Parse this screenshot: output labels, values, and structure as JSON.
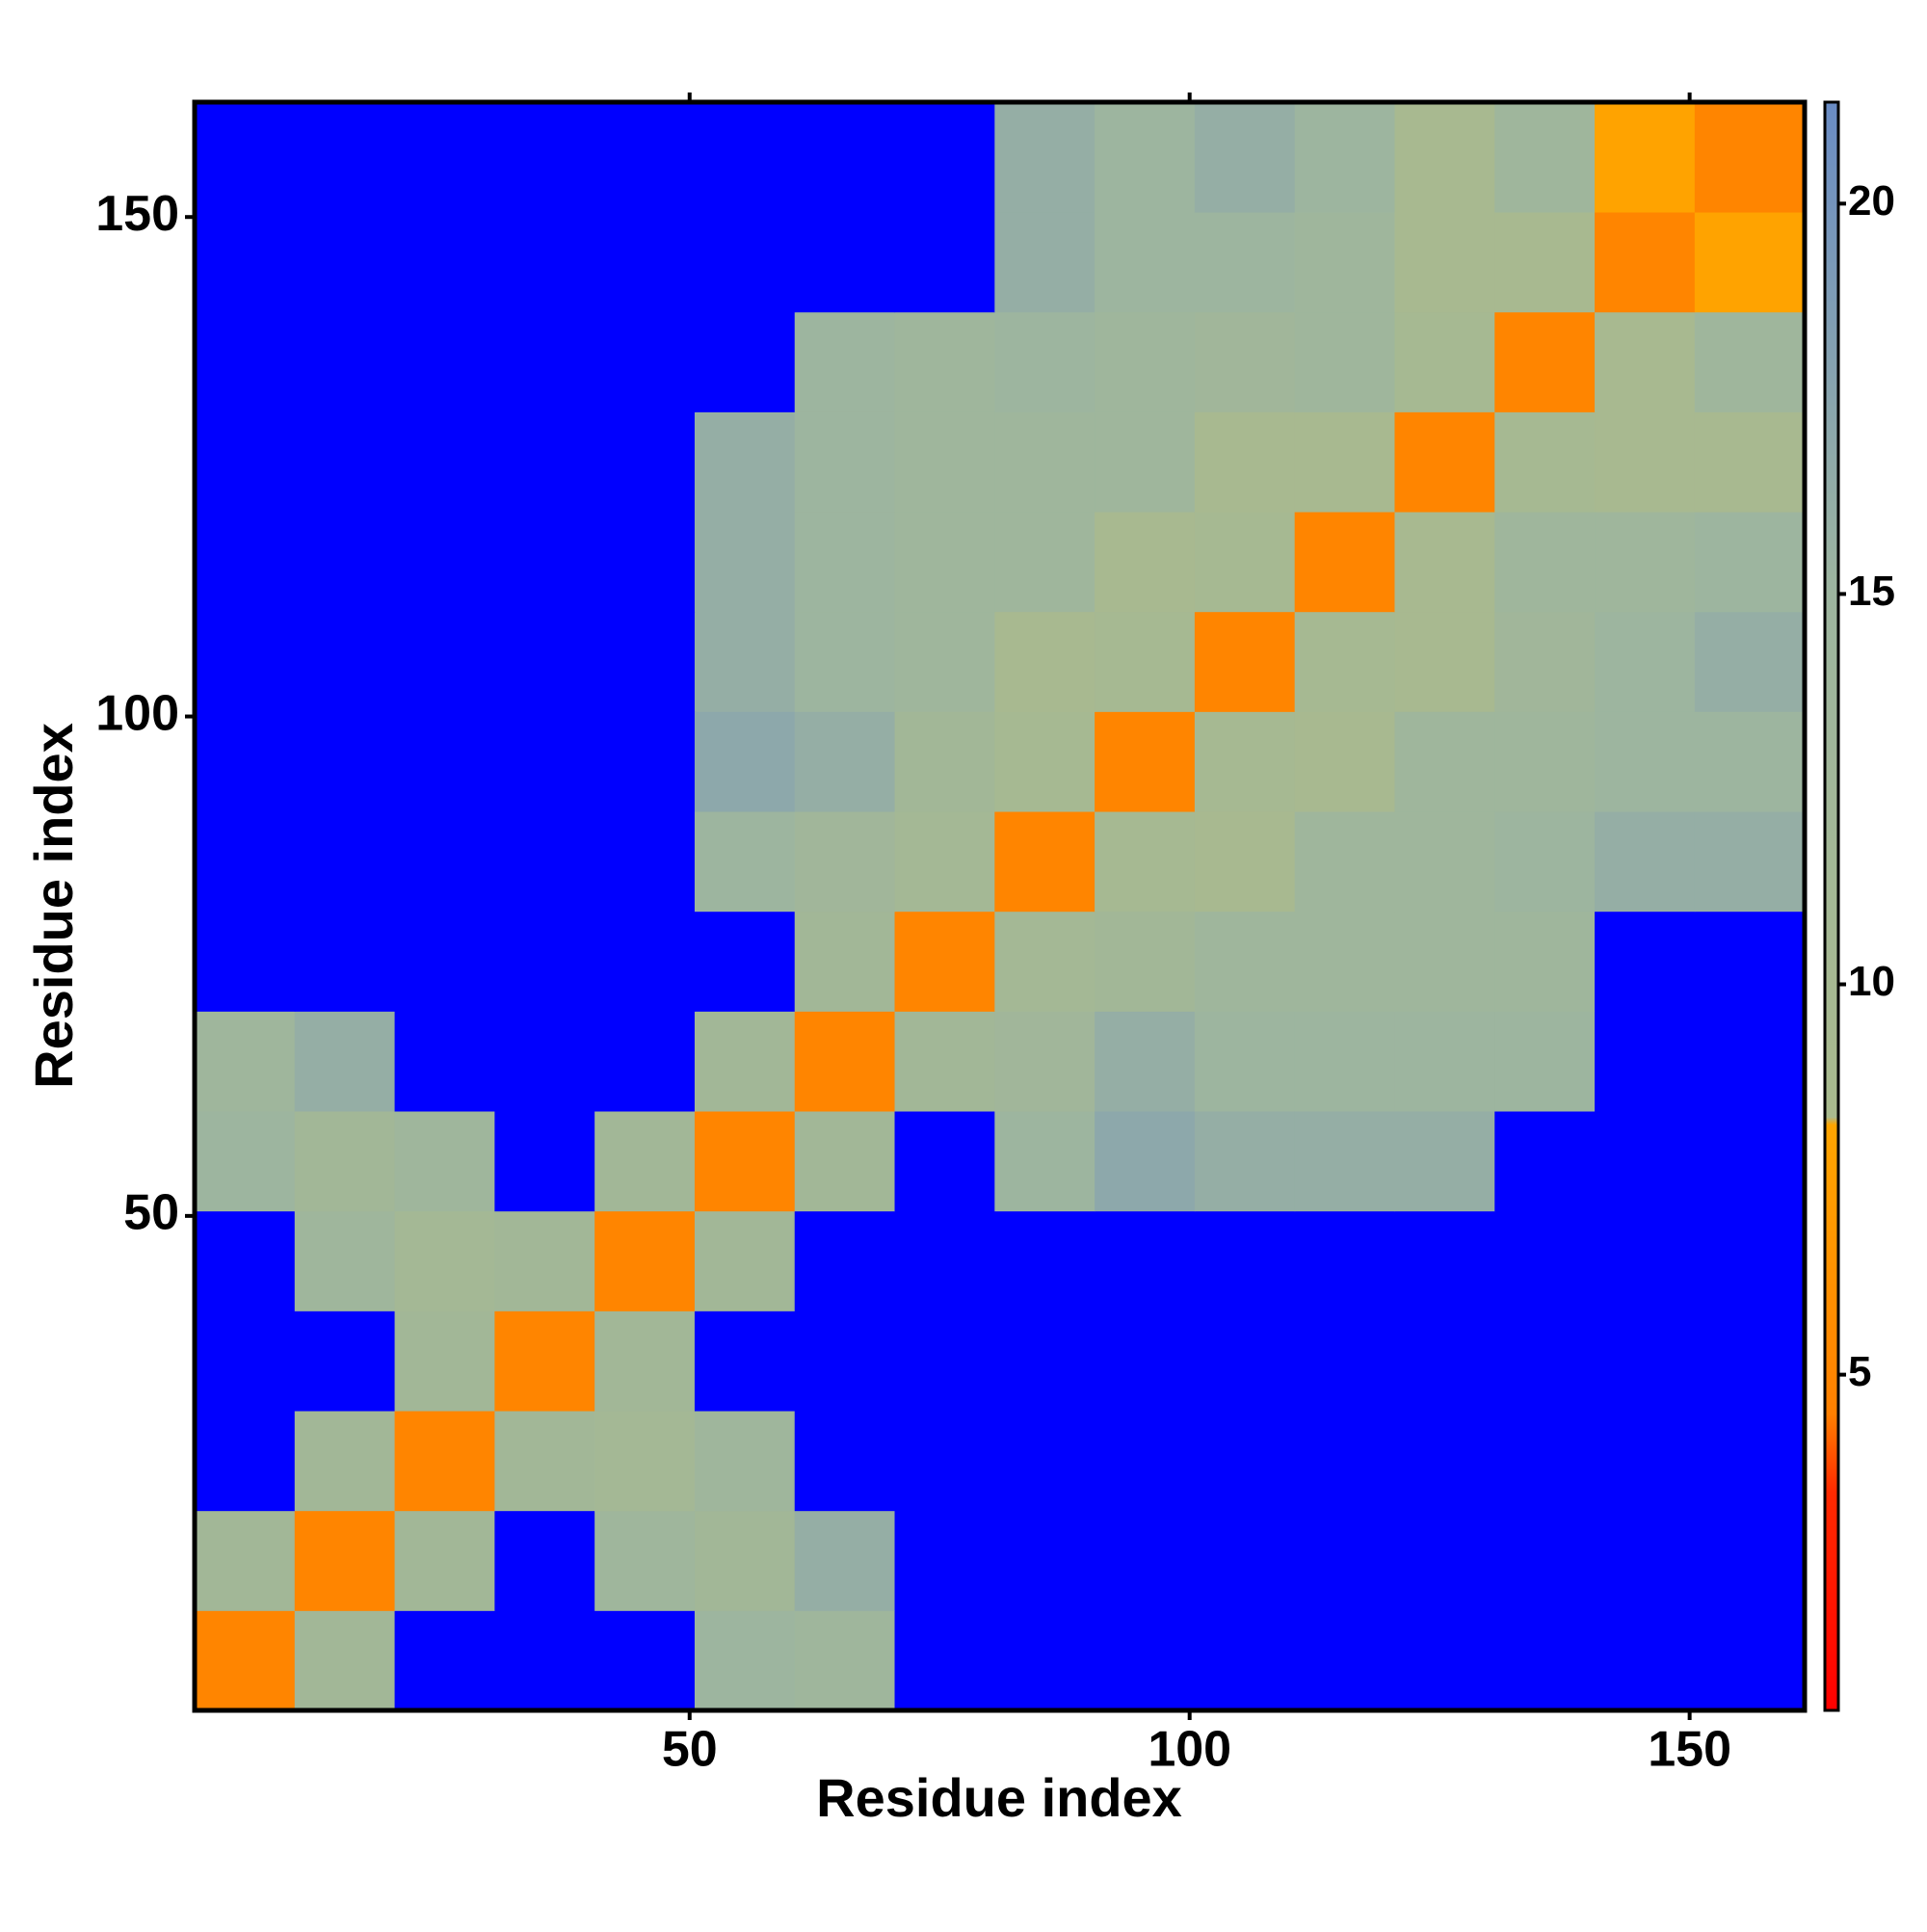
{
  "chart_data": {
    "type": "heatmap",
    "x_label": "Residue index",
    "y_label": "Residue index",
    "xbins": [
      0.5,
      10.5,
      20.5,
      30.5,
      40.5,
      50.5,
      60.5,
      70.5,
      80.5,
      90.5,
      100.5,
      110.5,
      120.5,
      130.5,
      140.5,
      150.5,
      161.5
    ],
    "ybins": [
      0.5,
      10.5,
      20.5,
      30.5,
      40.5,
      50.5,
      60.5,
      70.5,
      80.5,
      90.5,
      100.5,
      110.5,
      120.5,
      130.5,
      140.5,
      150.5,
      161.5
    ],
    "z": [
      [
        5,
        12,
        25,
        25,
        25,
        15,
        14,
        25,
        25,
        25,
        25,
        25,
        25,
        25,
        25,
        25
      ],
      [
        12,
        5,
        12,
        25,
        14,
        12,
        16,
        25,
        25,
        25,
        25,
        25,
        25,
        25,
        25,
        25
      ],
      [
        25,
        12,
        5,
        12,
        11,
        14,
        25,
        25,
        25,
        25,
        25,
        25,
        25,
        25,
        25,
        25
      ],
      [
        25,
        25,
        12,
        5,
        12,
        25,
        25,
        25,
        25,
        25,
        25,
        25,
        25,
        25,
        25,
        25
      ],
      [
        25,
        14,
        11,
        12,
        5,
        12,
        25,
        25,
        25,
        25,
        25,
        25,
        25,
        25,
        25,
        25
      ],
      [
        15,
        12,
        14,
        25,
        12,
        5,
        12,
        25,
        15,
        17,
        16,
        16,
        16,
        25,
        25,
        25
      ],
      [
        14,
        16,
        25,
        25,
        25,
        12,
        5,
        12,
        13,
        16,
        15,
        15,
        15,
        15,
        25,
        25
      ],
      [
        25,
        25,
        25,
        25,
        25,
        25,
        12,
        5,
        11,
        12,
        14,
        14,
        14,
        14,
        25,
        25
      ],
      [
        25,
        25,
        25,
        25,
        25,
        15,
        13,
        11,
        5,
        10,
        9,
        14,
        14,
        15,
        16,
        16
      ],
      [
        25,
        25,
        25,
        25,
        25,
        17,
        16,
        12,
        10,
        5,
        10,
        9,
        14,
        14,
        15,
        15
      ],
      [
        25,
        25,
        25,
        25,
        25,
        16,
        15,
        14,
        9,
        10,
        5,
        10,
        9,
        13,
        15,
        16
      ],
      [
        25,
        25,
        25,
        25,
        25,
        16,
        15,
        14,
        14,
        9,
        10,
        5,
        9,
        14,
        14,
        15
      ],
      [
        25,
        25,
        25,
        25,
        25,
        16,
        15,
        14,
        14,
        14,
        9,
        9,
        5,
        10,
        9,
        9
      ],
      [
        25,
        25,
        25,
        25,
        25,
        25,
        15,
        14,
        15,
        14,
        13,
        14,
        10,
        5,
        9,
        14
      ],
      [
        25,
        25,
        25,
        25,
        25,
        25,
        25,
        25,
        16,
        15,
        15,
        14,
        9,
        9,
        5,
        8
      ],
      [
        25,
        25,
        25,
        25,
        25,
        25,
        25,
        25,
        16,
        15,
        16,
        15,
        9,
        14,
        8,
        5
      ]
    ],
    "xlim": [
      0.5,
      161.5
    ],
    "ylim": [
      0.5,
      161.5
    ],
    "xticks": [
      50,
      100,
      150
    ],
    "yticks": [
      50,
      100,
      150
    ],
    "zlim": [
      0.7,
      21.3
    ],
    "zticks": [
      5,
      10,
      15,
      20
    ],
    "colorscale": [
      {
        "value": 0.7,
        "color": "#ff0000"
      },
      {
        "value": 3.5,
        "color": "#ff2a00"
      },
      {
        "value": 4.5,
        "color": "#ff8000"
      },
      {
        "value": 8.2,
        "color": "#ffa500"
      },
      {
        "value": 8.3,
        "color": "#a9ba8e"
      },
      {
        "value": 15,
        "color": "#9db59f"
      },
      {
        "value": 21.3,
        "color": "#6a8cc4"
      }
    ],
    "over_color": "#0000ff"
  }
}
